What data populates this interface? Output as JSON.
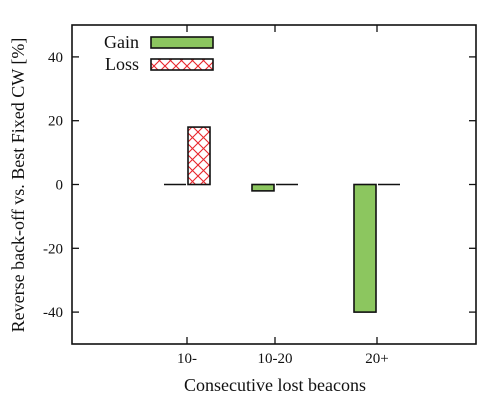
{
  "chart_data": {
    "type": "bar",
    "xlabel": "Consecutive lost beacons",
    "ylabel": "Reverse back-off vs. Best Fixed CW [%]",
    "ylim": [
      -50,
      50
    ],
    "yticks": [
      -40,
      -20,
      0,
      20,
      40
    ],
    "categories": [
      "10-",
      "10-20",
      "20+"
    ],
    "series": [
      {
        "name": "Gain",
        "values": [
          0,
          -2,
          -40
        ],
        "color": "#8cc65f",
        "pattern": "solid"
      },
      {
        "name": "Loss",
        "values": [
          18,
          0,
          0
        ],
        "color": "#ffffff",
        "pattern": "crosshatch",
        "hatch_color": "#e8262c"
      }
    ],
    "grid": false,
    "legend": "top-left"
  }
}
